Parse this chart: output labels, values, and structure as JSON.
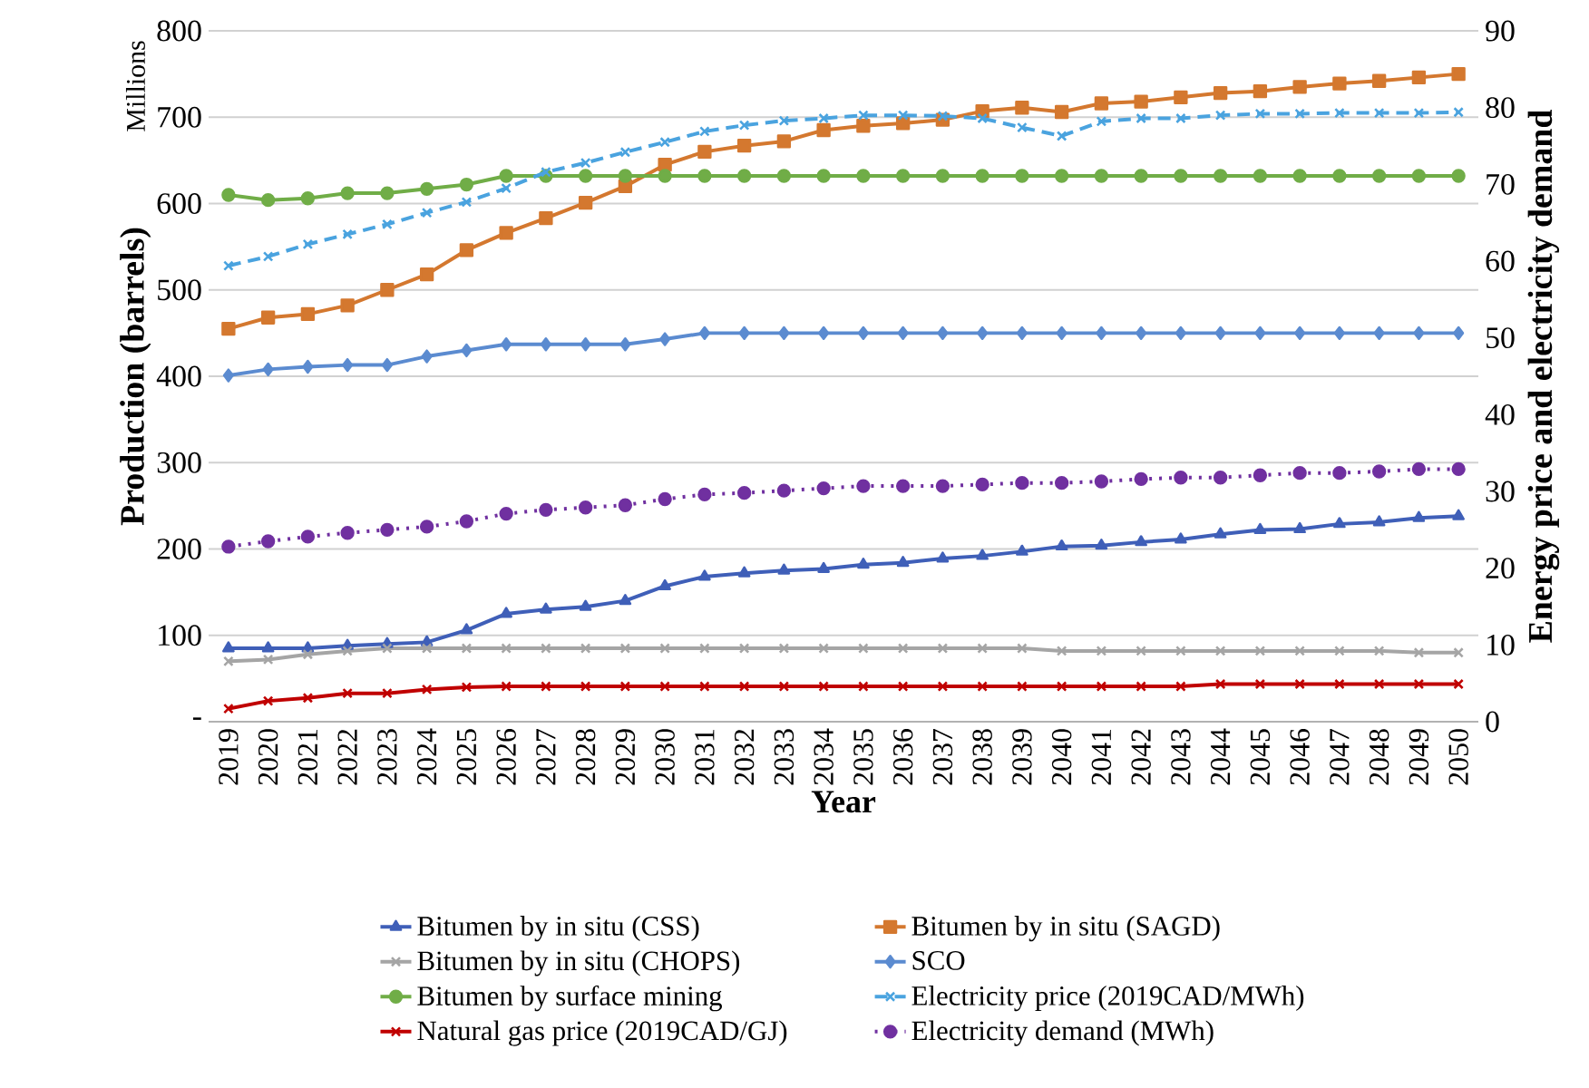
{
  "chart_data": {
    "type": "line",
    "xlabel": "Year",
    "ylabel": "Production (barrels)",
    "y2label": "Energy price and electricity demand",
    "annotations": [
      "Millions"
    ],
    "categories": [
      "2019",
      "2020",
      "2021",
      "2022",
      "2023",
      "2024",
      "2025",
      "2026",
      "2027",
      "2028",
      "2029",
      "2030",
      "2031",
      "2032",
      "2033",
      "2034",
      "2035",
      "2036",
      "2037",
      "2038",
      "2039",
      "2040",
      "2041",
      "2042",
      "2043",
      "2044",
      "2045",
      "2046",
      "2047",
      "2048",
      "2049",
      "2050"
    ],
    "ylim": [
      0,
      800
    ],
    "yticks": [
      {
        "value": 0,
        "label": "-"
      },
      100,
      200,
      300,
      400,
      500,
      600,
      700,
      800
    ],
    "y2lim": [
      0,
      90
    ],
    "y2ticks": [
      0,
      10,
      20,
      30,
      40,
      50,
      60,
      70,
      80,
      90
    ],
    "grid": "y",
    "legend": "bottom",
    "series": [
      {
        "name": "Bitumen by in situ (CSS)",
        "color": "#3f5fb8",
        "marker": "triangle",
        "line_style": "solid",
        "values": [
          85,
          85,
          85,
          88,
          90,
          92,
          106,
          125,
          130,
          133,
          140,
          157,
          168,
          172,
          175,
          177,
          182,
          184,
          189,
          192,
          197,
          203,
          204,
          208,
          211,
          217,
          222,
          223,
          229,
          231,
          236,
          238
        ]
      },
      {
        "name": "Bitumen by in situ (SAGD)",
        "color": "#d4782f",
        "marker": "square",
        "line_style": "solid",
        "values": [
          455,
          468,
          472,
          482,
          500,
          518,
          546,
          566,
          583,
          601,
          620,
          645,
          660,
          667,
          672,
          685,
          690,
          693,
          697,
          707,
          711,
          706,
          716,
          718,
          723,
          728,
          730,
          735,
          739,
          742,
          746,
          750
        ]
      },
      {
        "name": "Bitumen by in situ (CHOPS)",
        "color": "#a5a5a5",
        "marker": "cross",
        "line_style": "solid",
        "values": [
          70,
          72,
          78,
          82,
          85,
          85,
          85,
          85,
          85,
          85,
          85,
          85,
          85,
          85,
          85,
          85,
          85,
          85,
          85,
          85,
          85,
          82,
          82,
          82,
          82,
          82,
          82,
          82,
          82,
          82,
          80,
          80
        ]
      },
      {
        "name": "SCO",
        "color": "#5b8bd0",
        "marker": "diamond",
        "line_style": "solid",
        "values": [
          401,
          408,
          411,
          413,
          413,
          423,
          430,
          437,
          437,
          437,
          437,
          443,
          450,
          450,
          450,
          450,
          450,
          450,
          450,
          450,
          450,
          450,
          450,
          450,
          450,
          450,
          450,
          450,
          450,
          450,
          450,
          450
        ]
      },
      {
        "name": "Bitumen by surface mining",
        "color": "#70ad47",
        "marker": "circle",
        "line_style": "solid",
        "values": [
          610,
          604,
          606,
          612,
          612,
          617,
          622,
          632,
          632,
          632,
          632,
          632,
          632,
          632,
          632,
          632,
          632,
          632,
          632,
          632,
          632,
          632,
          632,
          632,
          632,
          632,
          632,
          632,
          632,
          632,
          632,
          632
        ]
      },
      {
        "name": "Electricity price (2019CAD/MWh)",
        "color": "#4aa3df",
        "marker": "cross",
        "line_style": "dashed",
        "axis": "y2",
        "values": [
          59.4,
          60.6,
          62.2,
          63.5,
          64.8,
          66.3,
          67.7,
          69.5,
          71.6,
          72.8,
          74.2,
          75.5,
          76.9,
          77.7,
          78.3,
          78.6,
          79.0,
          79.0,
          78.9,
          78.6,
          77.4,
          76.3,
          78.2,
          78.6,
          78.6,
          79.0,
          79.2,
          79.2,
          79.3,
          79.3,
          79.3,
          79.4
        ]
      },
      {
        "name": "Natural gas price (2019CAD/GJ)",
        "color": "#c00000",
        "marker": "cross",
        "line_style": "solid",
        "axis": "y2",
        "values": [
          1.7,
          2.7,
          3.1,
          3.7,
          3.7,
          4.2,
          4.5,
          4.6,
          4.6,
          4.6,
          4.6,
          4.6,
          4.6,
          4.6,
          4.6,
          4.6,
          4.6,
          4.6,
          4.6,
          4.6,
          4.6,
          4.6,
          4.6,
          4.6,
          4.6,
          4.9,
          4.9,
          4.9,
          4.9,
          4.9,
          4.9,
          4.9
        ]
      },
      {
        "name": "Electricity demand (MWh)",
        "color": "#7030a0",
        "marker": "circle",
        "line_style": "dotted",
        "axis": "y2",
        "values": [
          22.8,
          23.5,
          24.1,
          24.6,
          25.0,
          25.4,
          26.1,
          27.1,
          27.6,
          27.9,
          28.2,
          29.0,
          29.6,
          29.8,
          30.1,
          30.4,
          30.7,
          30.7,
          30.7,
          30.9,
          31.1,
          31.1,
          31.3,
          31.6,
          31.8,
          31.8,
          32.1,
          32.4,
          32.4,
          32.6,
          32.9,
          32.9
        ]
      }
    ]
  }
}
